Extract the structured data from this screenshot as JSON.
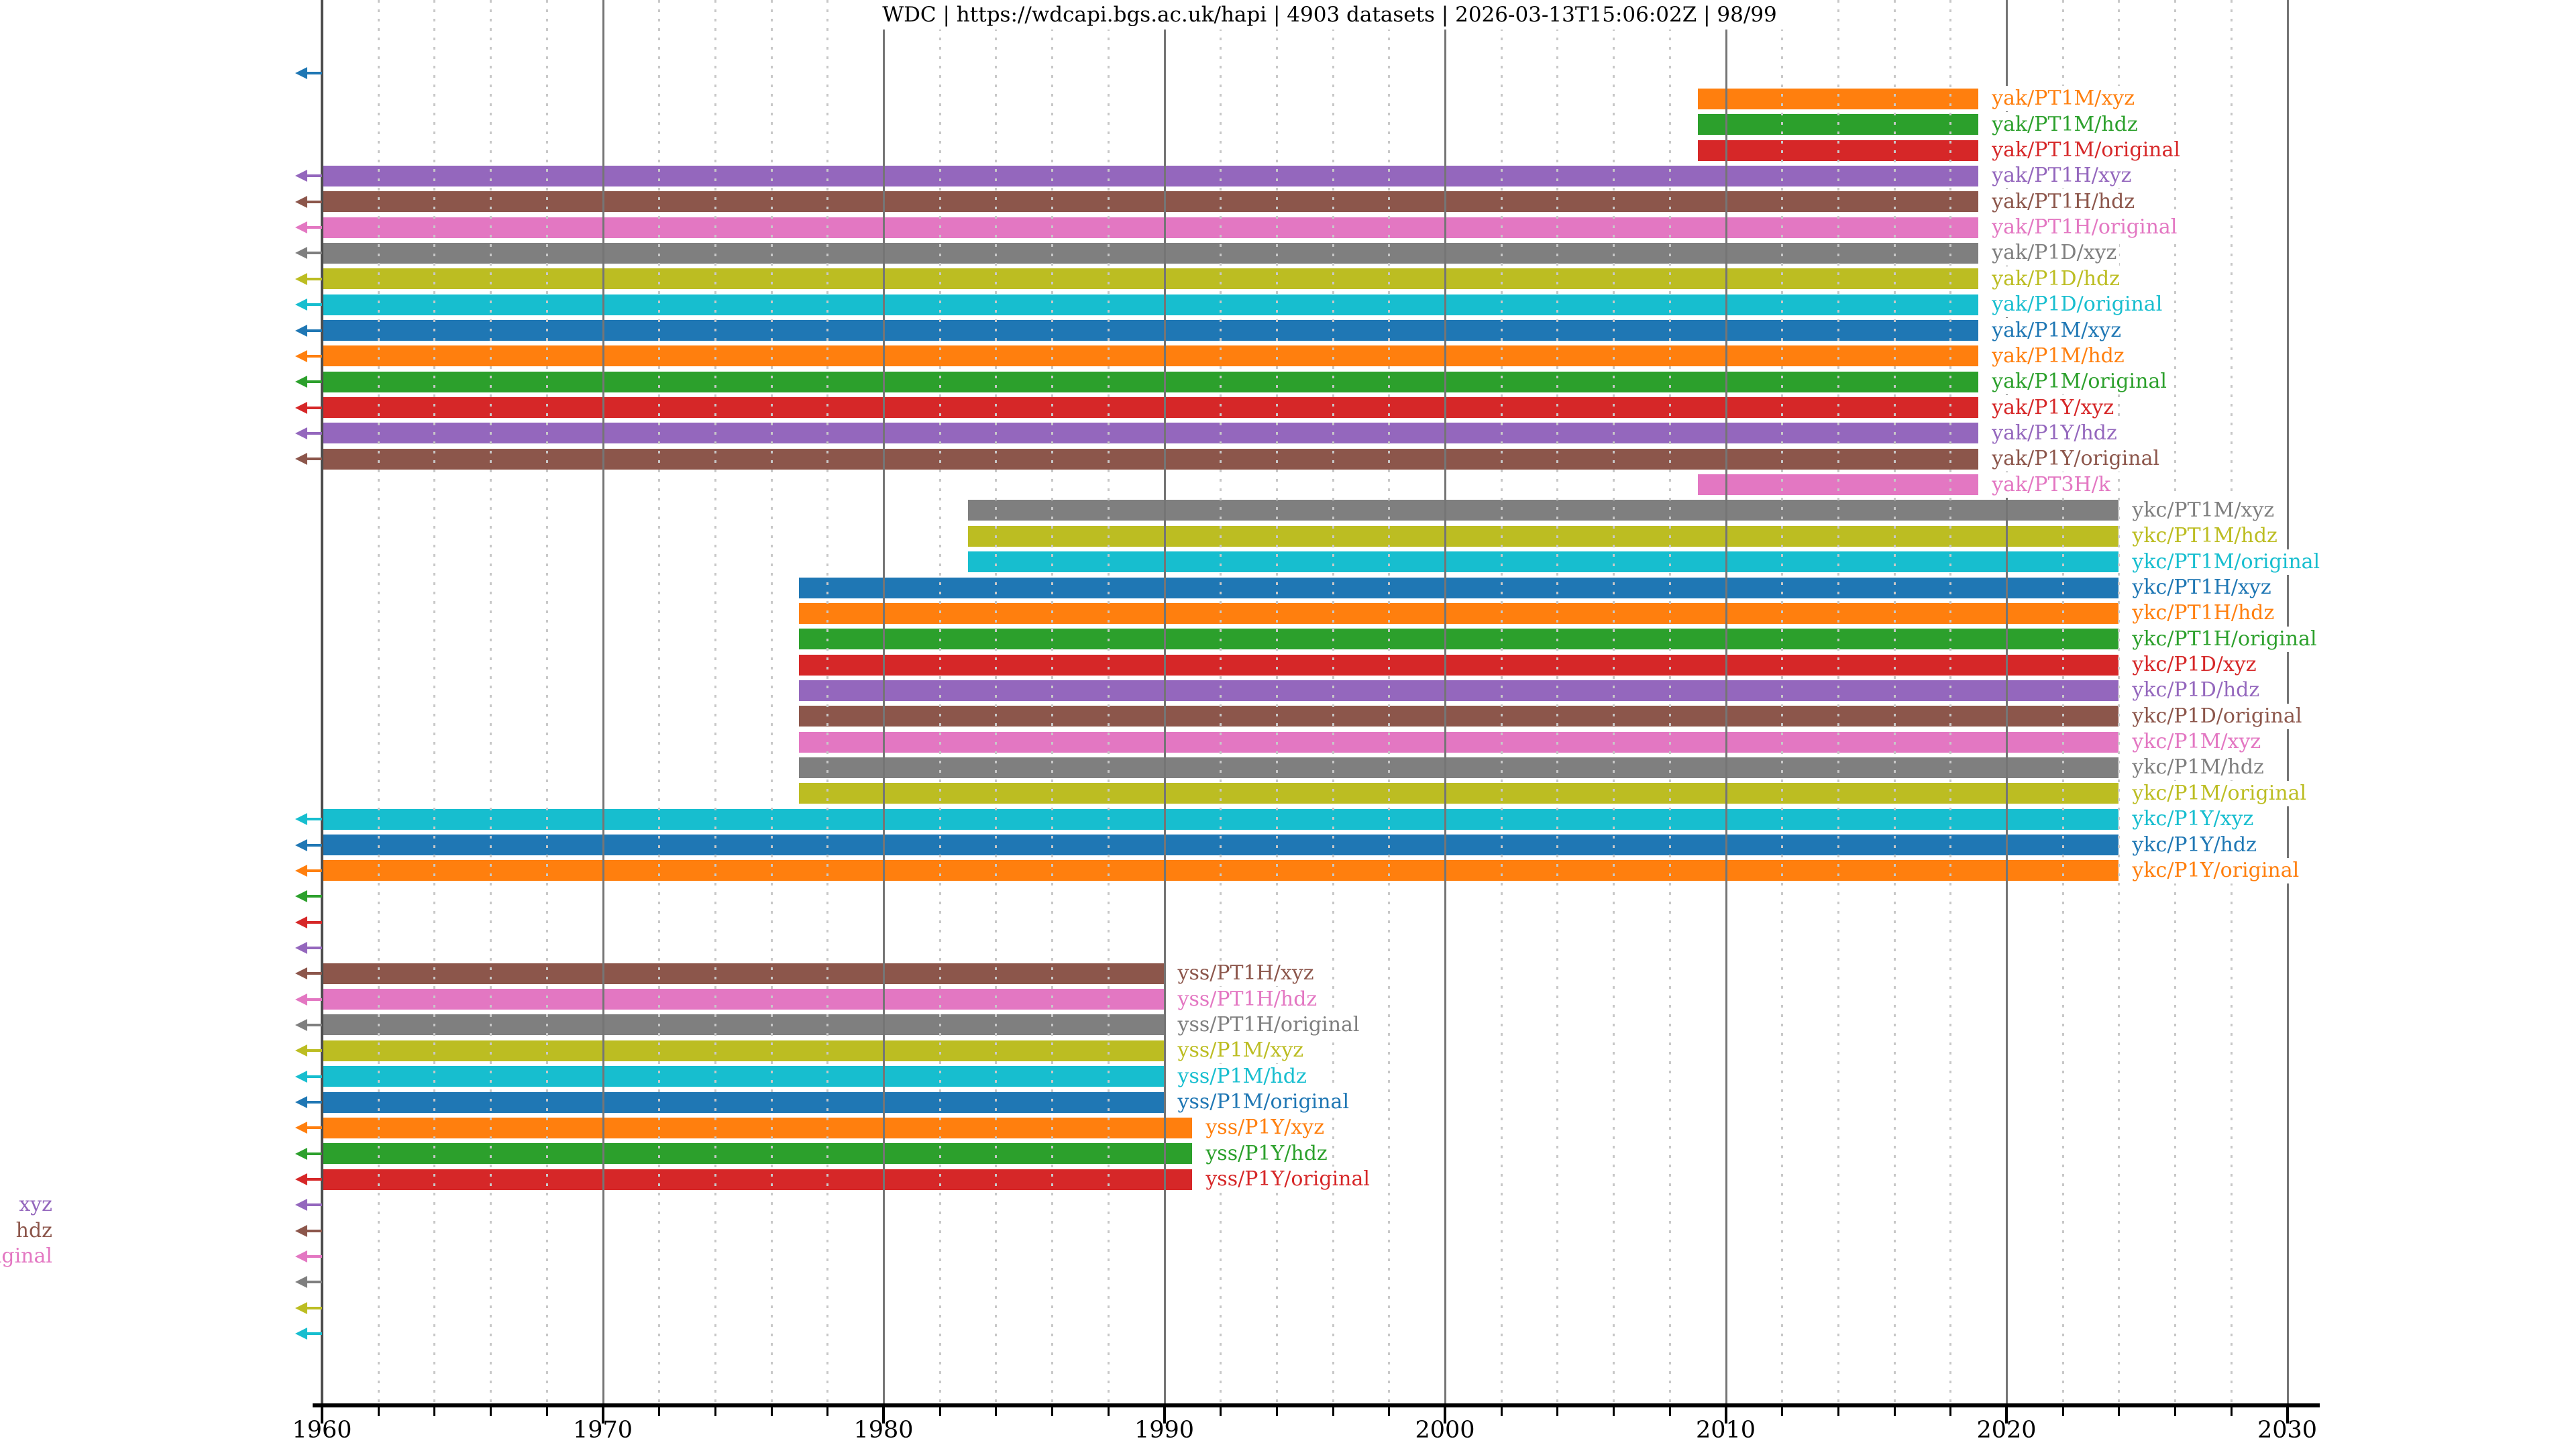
{
  "chart_data": {
    "type": "bar",
    "variant": "horizontal-timeline-gantt",
    "title": "WDC | https://wdcapi.bgs.ac.uk/hapi | 4903 datasets | 2026-03-13T15:06:02Z | 98/99",
    "xlabel": "",
    "ylabel": "",
    "xlim": [
      1960,
      2031.2
    ],
    "x_ticks": [
      1960,
      1970,
      1980,
      1990,
      2000,
      2010,
      2020,
      2030
    ],
    "x_minor_tick_interval_years": 2,
    "grid": {
      "major": "solid gray vertical lines",
      "minor": "dotted light-gray vertical lines"
    },
    "legend_position": "none (labels drawn at right end of each bar, colored like the bar)",
    "arrow_meaning": "left arrow at axis = series extends before 1960",
    "palette": {
      "blue": "#1f77b4",
      "orange": "#ff7f0e",
      "green": "#2ca02c",
      "red": "#d62728",
      "purple": "#9467bd",
      "brown": "#8c564b",
      "pink": "#e377c2",
      "gray": "#7f7f7f",
      "olive": "#bcbd22",
      "cyan": "#17becf"
    },
    "rows": [
      {
        "label": null,
        "color": "blue",
        "start": null,
        "end": null,
        "arrow": true,
        "label_clipped": false
      },
      {
        "label": "yak/PT1M/xyz",
        "color": "orange",
        "start": 2009,
        "end": 2019,
        "arrow": false,
        "label_clipped": false
      },
      {
        "label": "yak/PT1M/hdz",
        "color": "green",
        "start": 2009,
        "end": 2019,
        "arrow": false,
        "label_clipped": false
      },
      {
        "label": "yak/PT1M/original",
        "color": "red",
        "start": 2009,
        "end": 2019,
        "arrow": false,
        "label_clipped": false
      },
      {
        "label": "yak/PT1H/xyz",
        "color": "purple",
        "start": null,
        "end": 2019,
        "arrow": true,
        "label_clipped": false
      },
      {
        "label": "yak/PT1H/hdz",
        "color": "brown",
        "start": null,
        "end": 2019,
        "arrow": true,
        "label_clipped": false
      },
      {
        "label": "yak/PT1H/original",
        "color": "pink",
        "start": null,
        "end": 2019,
        "arrow": true,
        "label_clipped": false
      },
      {
        "label": "yak/P1D/xyz",
        "color": "gray",
        "start": null,
        "end": 2019,
        "arrow": true,
        "label_clipped": false
      },
      {
        "label": "yak/P1D/hdz",
        "color": "olive",
        "start": null,
        "end": 2019,
        "arrow": true,
        "label_clipped": false
      },
      {
        "label": "yak/P1D/original",
        "color": "cyan",
        "start": null,
        "end": 2019,
        "arrow": true,
        "label_clipped": false
      },
      {
        "label": "yak/P1M/xyz",
        "color": "blue",
        "start": null,
        "end": 2019,
        "arrow": true,
        "label_clipped": false
      },
      {
        "label": "yak/P1M/hdz",
        "color": "orange",
        "start": null,
        "end": 2019,
        "arrow": true,
        "label_clipped": false
      },
      {
        "label": "yak/P1M/original",
        "color": "green",
        "start": null,
        "end": 2019,
        "arrow": true,
        "label_clipped": false
      },
      {
        "label": "yak/P1Y/xyz",
        "color": "red",
        "start": null,
        "end": 2019,
        "arrow": true,
        "label_clipped": false
      },
      {
        "label": "yak/P1Y/hdz",
        "color": "purple",
        "start": null,
        "end": 2019,
        "arrow": true,
        "label_clipped": false
      },
      {
        "label": "yak/P1Y/original",
        "color": "brown",
        "start": null,
        "end": 2019,
        "arrow": true,
        "label_clipped": false
      },
      {
        "label": "yak/PT3H/k",
        "color": "pink",
        "start": 2009,
        "end": 2019,
        "arrow": false,
        "label_clipped": false
      },
      {
        "label": "ykc/PT1M/xyz",
        "color": "gray",
        "start": 1983,
        "end": 2024,
        "arrow": false,
        "label_clipped": false
      },
      {
        "label": "ykc/PT1M/hdz",
        "color": "olive",
        "start": 1983,
        "end": 2024,
        "arrow": false,
        "label_clipped": false
      },
      {
        "label": "ykc/PT1M/original",
        "color": "cyan",
        "start": 1983,
        "end": 2024,
        "arrow": false,
        "label_clipped": false
      },
      {
        "label": "ykc/PT1H/xyz",
        "color": "blue",
        "start": 1977,
        "end": 2024,
        "arrow": false,
        "label_clipped": false
      },
      {
        "label": "ykc/PT1H/hdz",
        "color": "orange",
        "start": 1977,
        "end": 2024,
        "arrow": false,
        "label_clipped": false
      },
      {
        "label": "ykc/PT1H/original",
        "color": "green",
        "start": 1977,
        "end": 2024,
        "arrow": false,
        "label_clipped": false
      },
      {
        "label": "ykc/P1D/xyz",
        "color": "red",
        "start": 1977,
        "end": 2024,
        "arrow": false,
        "label_clipped": false
      },
      {
        "label": "ykc/P1D/hdz",
        "color": "purple",
        "start": 1977,
        "end": 2024,
        "arrow": false,
        "label_clipped": false
      },
      {
        "label": "ykc/P1D/original",
        "color": "brown",
        "start": 1977,
        "end": 2024,
        "arrow": false,
        "label_clipped": false
      },
      {
        "label": "ykc/P1M/xyz",
        "color": "pink",
        "start": 1977,
        "end": 2024,
        "arrow": false,
        "label_clipped": false
      },
      {
        "label": "ykc/P1M/hdz",
        "color": "gray",
        "start": 1977,
        "end": 2024,
        "arrow": false,
        "label_clipped": false
      },
      {
        "label": "ykc/P1M/original",
        "color": "olive",
        "start": 1977,
        "end": 2024,
        "arrow": false,
        "label_clipped": false
      },
      {
        "label": "ykc/P1Y/xyz",
        "color": "cyan",
        "start": null,
        "end": 2024,
        "arrow": true,
        "label_clipped": false
      },
      {
        "label": "ykc/P1Y/hdz",
        "color": "blue",
        "start": null,
        "end": 2024,
        "arrow": true,
        "label_clipped": false
      },
      {
        "label": "ykc/P1Y/original",
        "color": "orange",
        "start": null,
        "end": 2024,
        "arrow": true,
        "label_clipped": false
      },
      {
        "label": null,
        "color": "green",
        "start": null,
        "end": null,
        "arrow": true,
        "label_clipped": false
      },
      {
        "label": null,
        "color": "red",
        "start": null,
        "end": null,
        "arrow": true,
        "label_clipped": false
      },
      {
        "label": null,
        "color": "purple",
        "start": null,
        "end": null,
        "arrow": true,
        "label_clipped": false
      },
      {
        "label": "yss/PT1H/xyz",
        "color": "brown",
        "start": null,
        "end": 1990,
        "arrow": true,
        "label_clipped": false
      },
      {
        "label": "yss/PT1H/hdz",
        "color": "pink",
        "start": null,
        "end": 1990,
        "arrow": true,
        "label_clipped": false
      },
      {
        "label": "yss/PT1H/original",
        "color": "gray",
        "start": null,
        "end": 1990,
        "arrow": true,
        "label_clipped": false
      },
      {
        "label": "yss/P1M/xyz",
        "color": "olive",
        "start": null,
        "end": 1990,
        "arrow": true,
        "label_clipped": false
      },
      {
        "label": "yss/P1M/hdz",
        "color": "cyan",
        "start": null,
        "end": 1990,
        "arrow": true,
        "label_clipped": false
      },
      {
        "label": "yss/P1M/original",
        "color": "blue",
        "start": null,
        "end": 1990,
        "arrow": true,
        "label_clipped": false
      },
      {
        "label": "yss/P1Y/xyz",
        "color": "orange",
        "start": null,
        "end": 1991,
        "arrow": true,
        "label_clipped": false
      },
      {
        "label": "yss/P1Y/hdz",
        "color": "green",
        "start": null,
        "end": 1991,
        "arrow": true,
        "label_clipped": false
      },
      {
        "label": "yss/P1Y/original",
        "color": "red",
        "start": null,
        "end": 1991,
        "arrow": true,
        "label_clipped": false
      },
      {
        "label": "xyz",
        "color": "purple",
        "start": null,
        "end": null,
        "arrow": true,
        "label_clipped": true
      },
      {
        "label": "hdz",
        "color": "brown",
        "start": null,
        "end": null,
        "arrow": true,
        "label_clipped": true
      },
      {
        "label": "original",
        "color": "pink",
        "start": null,
        "end": null,
        "arrow": true,
        "label_clipped": true
      },
      {
        "label": null,
        "color": "gray",
        "start": null,
        "end": null,
        "arrow": true,
        "label_clipped": false
      },
      {
        "label": null,
        "color": "olive",
        "start": null,
        "end": null,
        "arrow": true,
        "label_clipped": false
      },
      {
        "label": null,
        "color": "cyan",
        "start": null,
        "end": null,
        "arrow": true,
        "label_clipped": false
      }
    ]
  }
}
